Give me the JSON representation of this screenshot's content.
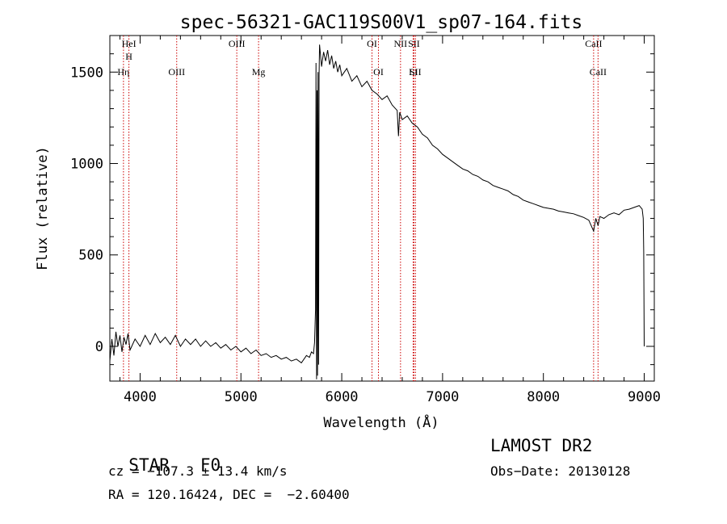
{
  "chart_data": {
    "type": "line",
    "title": "spec-56321-GAC119S00V1_sp07-164.fits",
    "xlabel": "Wavelength (Å)",
    "ylabel": "Flux (relative)",
    "xlim": [
      3700,
      9100
    ],
    "ylim": [
      -190,
      1700
    ],
    "x_ticks": [
      4000,
      5000,
      6000,
      7000,
      8000,
      9000
    ],
    "x_tick_labels": [
      "4000",
      "5000",
      "6000",
      "7000",
      "8000",
      "9000"
    ],
    "y_ticks": [
      0,
      500,
      1000,
      1500
    ],
    "y_tick_labels": [
      "0",
      "500",
      "1000",
      "1500"
    ],
    "grid": false,
    "series": [
      {
        "color": "#000000",
        "points": [
          [
            3700,
            -80
          ],
          [
            3720,
            40
          ],
          [
            3740,
            -50
          ],
          [
            3760,
            80
          ],
          [
            3780,
            0
          ],
          [
            3800,
            60
          ],
          [
            3820,
            -30
          ],
          [
            3840,
            50
          ],
          [
            3860,
            10
          ],
          [
            3880,
            70
          ],
          [
            3900,
            -20
          ],
          [
            3950,
            40
          ],
          [
            4000,
            0
          ],
          [
            4050,
            60
          ],
          [
            4100,
            10
          ],
          [
            4150,
            70
          ],
          [
            4200,
            20
          ],
          [
            4250,
            50
          ],
          [
            4300,
            10
          ],
          [
            4350,
            60
          ],
          [
            4400,
            0
          ],
          [
            4450,
            40
          ],
          [
            4500,
            10
          ],
          [
            4550,
            40
          ],
          [
            4600,
            0
          ],
          [
            4650,
            30
          ],
          [
            4700,
            0
          ],
          [
            4750,
            20
          ],
          [
            4800,
            -10
          ],
          [
            4850,
            10
          ],
          [
            4900,
            -20
          ],
          [
            4950,
            0
          ],
          [
            5000,
            -30
          ],
          [
            5050,
            -10
          ],
          [
            5100,
            -40
          ],
          [
            5150,
            -20
          ],
          [
            5200,
            -50
          ],
          [
            5250,
            -40
          ],
          [
            5300,
            -60
          ],
          [
            5350,
            -50
          ],
          [
            5400,
            -70
          ],
          [
            5450,
            -60
          ],
          [
            5500,
            -80
          ],
          [
            5550,
            -70
          ],
          [
            5600,
            -90
          ],
          [
            5650,
            -50
          ],
          [
            5680,
            -60
          ],
          [
            5700,
            -30
          ],
          [
            5720,
            -40
          ],
          [
            5730,
            20
          ],
          [
            5740,
            200
          ],
          [
            5745,
            1550
          ],
          [
            5750,
            -180
          ],
          [
            5755,
            1400
          ],
          [
            5760,
            -160
          ],
          [
            5765,
            1500
          ],
          [
            5770,
            -100
          ],
          [
            5775,
            1480
          ],
          [
            5780,
            1650
          ],
          [
            5800,
            1530
          ],
          [
            5820,
            1610
          ],
          [
            5840,
            1560
          ],
          [
            5860,
            1620
          ],
          [
            5880,
            1540
          ],
          [
            5900,
            1590
          ],
          [
            5920,
            1520
          ],
          [
            5940,
            1560
          ],
          [
            5960,
            1500
          ],
          [
            5980,
            1540
          ],
          [
            6000,
            1480
          ],
          [
            6050,
            1520
          ],
          [
            6100,
            1450
          ],
          [
            6150,
            1480
          ],
          [
            6200,
            1420
          ],
          [
            6250,
            1450
          ],
          [
            6300,
            1400
          ],
          [
            6350,
            1380
          ],
          [
            6400,
            1350
          ],
          [
            6450,
            1370
          ],
          [
            6500,
            1320
          ],
          [
            6550,
            1290
          ],
          [
            6563,
            1150
          ],
          [
            6575,
            1280
          ],
          [
            6600,
            1240
          ],
          [
            6650,
            1260
          ],
          [
            6700,
            1220
          ],
          [
            6750,
            1200
          ],
          [
            6800,
            1160
          ],
          [
            6850,
            1140
          ],
          [
            6900,
            1100
          ],
          [
            6950,
            1080
          ],
          [
            7000,
            1050
          ],
          [
            7050,
            1030
          ],
          [
            7100,
            1010
          ],
          [
            7150,
            990
          ],
          [
            7200,
            970
          ],
          [
            7250,
            960
          ],
          [
            7300,
            940
          ],
          [
            7350,
            930
          ],
          [
            7400,
            910
          ],
          [
            7450,
            900
          ],
          [
            7500,
            880
          ],
          [
            7550,
            870
          ],
          [
            7600,
            860
          ],
          [
            7650,
            850
          ],
          [
            7700,
            830
          ],
          [
            7750,
            820
          ],
          [
            7800,
            800
          ],
          [
            7850,
            790
          ],
          [
            7900,
            780
          ],
          [
            7950,
            770
          ],
          [
            8000,
            760
          ],
          [
            8050,
            755
          ],
          [
            8100,
            750
          ],
          [
            8150,
            740
          ],
          [
            8200,
            735
          ],
          [
            8250,
            730
          ],
          [
            8300,
            725
          ],
          [
            8350,
            715
          ],
          [
            8400,
            705
          ],
          [
            8450,
            690
          ],
          [
            8498,
            630
          ],
          [
            8520,
            700
          ],
          [
            8542,
            660
          ],
          [
            8560,
            710
          ],
          [
            8600,
            700
          ],
          [
            8650,
            720
          ],
          [
            8700,
            730
          ],
          [
            8750,
            720
          ],
          [
            8800,
            745
          ],
          [
            8850,
            750
          ],
          [
            8900,
            760
          ],
          [
            8950,
            770
          ],
          [
            8980,
            750
          ],
          [
            8990,
            700
          ],
          [
            8995,
            520
          ],
          [
            9000,
            0
          ]
        ]
      }
    ],
    "lines": [
      {
        "wavelength": 3835,
        "labels": [
          "Hη"
        ]
      },
      {
        "wavelength": 3889,
        "labels": [
          "HeI",
          "H"
        ]
      },
      {
        "wavelength": 4363,
        "labels": [
          "OIII"
        ]
      },
      {
        "wavelength": 4959,
        "labels": [
          "OIII"
        ]
      },
      {
        "wavelength": 5175,
        "labels": [
          "Mg"
        ]
      },
      {
        "wavelength": 6300,
        "labels": [
          "OI"
        ]
      },
      {
        "wavelength": 6364,
        "labels": [
          "OI"
        ]
      },
      {
        "wavelength": 6583,
        "labels": [
          "NII"
        ]
      },
      {
        "wavelength": 6708,
        "labels": [
          "Li"
        ]
      },
      {
        "wavelength": 6716,
        "labels": [
          "SII"
        ]
      },
      {
        "wavelength": 6731,
        "labels": [
          "SII"
        ]
      },
      {
        "wavelength": 8498,
        "labels": [
          "CaII"
        ]
      },
      {
        "wavelength": 8542,
        "labels": [
          "CaII"
        ]
      }
    ],
    "line_color": "#cc0000"
  },
  "footer": {
    "class_label": "STAR",
    "subclass": "F0",
    "survey": "LAMOST DR2",
    "cz": "cz = −107.3 ± 13.4 km/s",
    "obs_date": "Obs−Date: 20130128",
    "radec": "RA = 120.16424, DEC =  −2.60400"
  }
}
